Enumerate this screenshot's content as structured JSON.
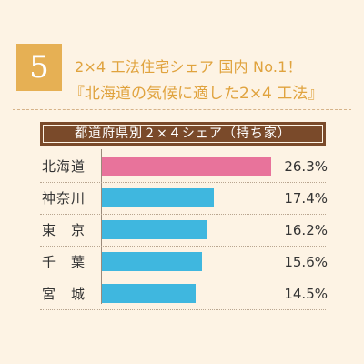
{
  "badge": "5",
  "heading_line1": "2×4 工法住宅シェア 国内 No.1！",
  "heading_line2": "『北海道の気候に適した2×4 工法』",
  "chart_data": {
    "type": "bar",
    "orientation": "horizontal",
    "title": "都道府県別２×４シェア（持ち家）",
    "categories": [
      "北海道",
      "神奈川",
      "東　京",
      "千　葉",
      "宮　城"
    ],
    "values": [
      26.3,
      17.4,
      16.2,
      15.6,
      14.5
    ],
    "value_labels": [
      "26.3%",
      "17.4%",
      "16.2%",
      "15.6%",
      "14.5%"
    ],
    "colors": [
      "#e8739b",
      "#3fb7df",
      "#3fb7df",
      "#3fb7df",
      "#3fb7df"
    ],
    "xlim": [
      0,
      28
    ],
    "grid": false
  }
}
